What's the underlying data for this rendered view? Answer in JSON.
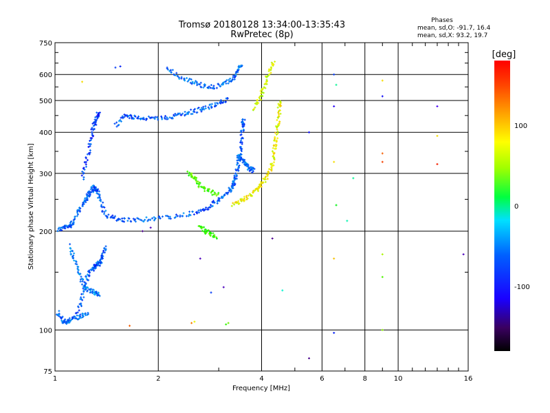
{
  "chart_data": {
    "type": "scatter",
    "title": "Tromsø 20180128 13:34:00-13:35:43",
    "subtitle": "RwPretec (8p)",
    "xlabel": "Frequency [MHz]",
    "ylabel": "Stationary phase Virtual Height [km]",
    "x_scale": "log",
    "y_scale": "log",
    "xlim": [
      1,
      16
    ],
    "ylim": [
      75,
      750
    ],
    "x_ticks": [
      1,
      2,
      4,
      6,
      8,
      10,
      16
    ],
    "y_ticks": [
      75,
      100,
      200,
      300,
      400,
      500,
      600,
      750
    ],
    "grid": true,
    "stats": {
      "header": "Phases",
      "line_o": "mean, sd,O: -91.7, 16.4",
      "line_x": "mean, sd,X:  93.2, 19.7"
    },
    "colorbar": {
      "label": "[deg]",
      "range": [
        -180,
        180
      ],
      "ticks": [
        100,
        0,
        -100
      ],
      "ticklabels": [
        "100",
        "0",
        "-100"
      ]
    },
    "traces": [
      {
        "name": "",
        "phase": -100,
        "points": [
          [
            1.02,
            202
          ],
          [
            1.06,
            205
          ],
          [
            1.1,
            207
          ],
          [
            1.13,
            213
          ],
          [
            1.18,
            232
          ],
          [
            1.22,
            247
          ],
          [
            1.25,
            258
          ],
          [
            1.28,
            266
          ],
          [
            1.3,
            272
          ],
          [
            1.32,
            268
          ],
          [
            1.35,
            252
          ],
          [
            1.4,
            225
          ],
          [
            1.5,
            218
          ],
          [
            1.6,
            216
          ],
          [
            1.8,
            217
          ],
          [
            2.0,
            219
          ],
          [
            2.3,
            222
          ],
          [
            2.6,
            228
          ],
          [
            2.8,
            236
          ],
          [
            3.0,
            248
          ],
          [
            3.2,
            262
          ]
        ]
      },
      {
        "name": "",
        "phase": -110,
        "points": [
          [
            1.2,
            290
          ],
          [
            1.24,
            330
          ],
          [
            1.27,
            380
          ],
          [
            1.3,
            420
          ],
          [
            1.32,
            440
          ],
          [
            1.34,
            460
          ]
        ]
      },
      {
        "name": "",
        "phase": -100,
        "points": [
          [
            1.15,
            110
          ],
          [
            1.2,
            125
          ],
          [
            1.23,
            140
          ],
          [
            1.26,
            150
          ],
          [
            1.3,
            155
          ],
          [
            1.33,
            158
          ],
          [
            1.35,
            160
          ],
          [
            1.38,
            168
          ],
          [
            1.4,
            180
          ]
        ]
      },
      {
        "name": "",
        "phase": -90,
        "points": [
          [
            1.1,
            180
          ],
          [
            1.14,
            165
          ],
          [
            1.18,
            148
          ],
          [
            1.22,
            135
          ],
          [
            1.26,
            132
          ],
          [
            1.3,
            130
          ],
          [
            1.35,
            128
          ]
        ]
      },
      {
        "name": "",
        "phase": -95,
        "points": [
          [
            1.02,
            113
          ],
          [
            1.05,
            107
          ],
          [
            1.08,
            105
          ],
          [
            1.12,
            108
          ],
          [
            1.18,
            110
          ],
          [
            1.25,
            112
          ]
        ]
      },
      {
        "name": "",
        "phase": -100,
        "points": [
          [
            1.5,
            420
          ],
          [
            1.6,
            450
          ],
          [
            1.7,
            445
          ],
          [
            1.8,
            441
          ],
          [
            2.0,
            440
          ],
          [
            2.2,
            447
          ],
          [
            2.4,
            457
          ],
          [
            2.6,
            466
          ],
          [
            2.8,
            478
          ],
          [
            3.0,
            490
          ],
          [
            3.2,
            505
          ]
        ]
      },
      {
        "name": "",
        "phase": -100,
        "points": [
          [
            3.2,
            262
          ],
          [
            3.3,
            275
          ],
          [
            3.35,
            290
          ],
          [
            3.4,
            310
          ],
          [
            3.45,
            340
          ],
          [
            3.5,
            380
          ],
          [
            3.52,
            420
          ],
          [
            3.54,
            440
          ]
        ]
      },
      {
        "name": "",
        "phase": -95,
        "points": [
          [
            2.1,
            630
          ],
          [
            2.3,
            590
          ],
          [
            2.5,
            570
          ],
          [
            2.7,
            555
          ],
          [
            2.9,
            550
          ],
          [
            3.1,
            565
          ],
          [
            3.3,
            580
          ],
          [
            3.4,
            610
          ],
          [
            3.5,
            650
          ]
        ]
      },
      {
        "name": "",
        "phase": -95,
        "points": [
          [
            3.4,
            340
          ],
          [
            3.5,
            330
          ],
          [
            3.6,
            320
          ],
          [
            3.7,
            310
          ],
          [
            3.8,
            305
          ]
        ]
      },
      {
        "name": "",
        "phase": 100,
        "points": [
          [
            3.3,
            240
          ],
          [
            3.5,
            248
          ],
          [
            3.7,
            256
          ],
          [
            3.9,
            268
          ],
          [
            4.0,
            280
          ],
          [
            4.2,
            298
          ],
          [
            4.3,
            320
          ],
          [
            4.35,
            350
          ],
          [
            4.4,
            380
          ],
          [
            4.45,
            420
          ],
          [
            4.5,
            460
          ],
          [
            4.52,
            500
          ]
        ]
      },
      {
        "name": "",
        "phase": 90,
        "points": [
          [
            3.8,
            470
          ],
          [
            3.95,
            510
          ],
          [
            4.1,
            560
          ],
          [
            4.2,
            610
          ],
          [
            4.35,
            650
          ]
        ]
      },
      {
        "name": "",
        "phase": 50,
        "points": [
          [
            2.45,
            300
          ],
          [
            2.55,
            290
          ],
          [
            2.65,
            275
          ],
          [
            2.8,
            265
          ],
          [
            3.0,
            258
          ]
        ]
      },
      {
        "name": "",
        "phase": 40,
        "points": [
          [
            2.65,
            205
          ],
          [
            2.75,
            200
          ],
          [
            2.85,
            195
          ],
          [
            2.95,
            192
          ]
        ]
      }
    ],
    "isolated_points": [
      {
        "x": 6.5,
        "y": 600,
        "phase": -110
      },
      {
        "x": 6.6,
        "y": 558,
        "phase": -20
      },
      {
        "x": 6.5,
        "y": 480,
        "phase": -140
      },
      {
        "x": 9.0,
        "y": 575,
        "phase": 110
      },
      {
        "x": 9.0,
        "y": 515,
        "phase": -130
      },
      {
        "x": 13.0,
        "y": 480,
        "phase": -150
      },
      {
        "x": 13.0,
        "y": 390,
        "phase": 110
      },
      {
        "x": 9.0,
        "y": 345,
        "phase": 150
      },
      {
        "x": 9.0,
        "y": 325,
        "phase": 160
      },
      {
        "x": 13.0,
        "y": 320,
        "phase": 170
      },
      {
        "x": 6.5,
        "y": 325,
        "phase": 110
      },
      {
        "x": 6.6,
        "y": 240,
        "phase": 20
      },
      {
        "x": 7.1,
        "y": 215,
        "phase": -30
      },
      {
        "x": 7.4,
        "y": 290,
        "phase": -20
      },
      {
        "x": 9.0,
        "y": 170,
        "phase": 80
      },
      {
        "x": 9.0,
        "y": 145,
        "phase": 50
      },
      {
        "x": 6.5,
        "y": 165,
        "phase": 120
      },
      {
        "x": 15.5,
        "y": 170,
        "phase": -160
      },
      {
        "x": 4.3,
        "y": 190,
        "phase": -170
      },
      {
        "x": 3.1,
        "y": 135,
        "phase": -160
      },
      {
        "x": 4.6,
        "y": 132,
        "phase": -40
      },
      {
        "x": 5.5,
        "y": 82,
        "phase": -170
      },
      {
        "x": 6.5,
        "y": 98,
        "phase": -120
      },
      {
        "x": 9.0,
        "y": 100,
        "phase": 70
      },
      {
        "x": 2.65,
        "y": 165,
        "phase": -160
      },
      {
        "x": 2.85,
        "y": 130,
        "phase": -110
      },
      {
        "x": 2.5,
        "y": 105,
        "phase": 140
      },
      {
        "x": 2.55,
        "y": 106,
        "phase": 100
      },
      {
        "x": 3.15,
        "y": 104,
        "phase": 40
      },
      {
        "x": 3.2,
        "y": 105,
        "phase": 60
      },
      {
        "x": 1.65,
        "y": 103,
        "phase": 150
      },
      {
        "x": 1.5,
        "y": 630,
        "phase": -110
      },
      {
        "x": 1.55,
        "y": 635,
        "phase": -120
      },
      {
        "x": 1.8,
        "y": 200,
        "phase": -170
      },
      {
        "x": 1.9,
        "y": 205,
        "phase": -160
      },
      {
        "x": 5.5,
        "y": 400,
        "phase": -130
      },
      {
        "x": 1.2,
        "y": 570,
        "phase": 110
      }
    ]
  }
}
